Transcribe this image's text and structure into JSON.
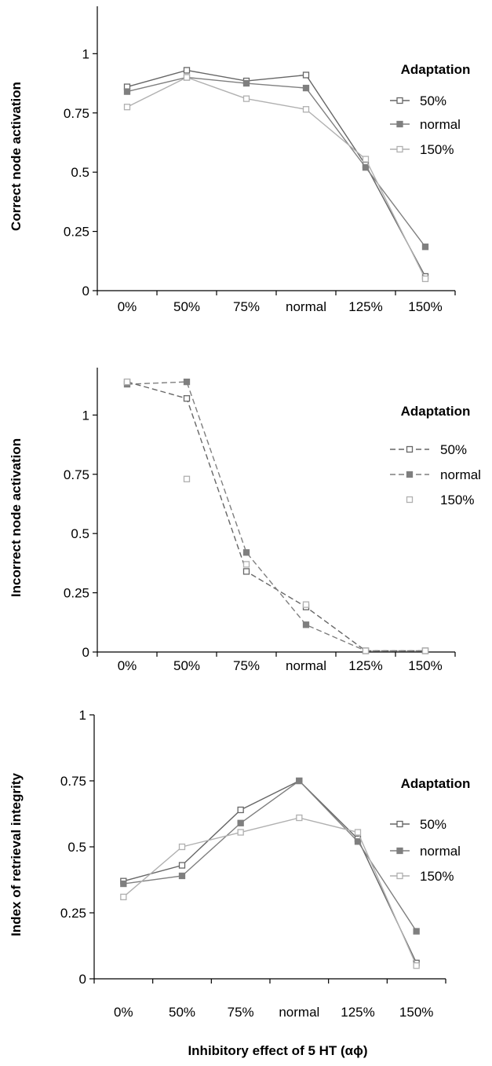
{
  "chart_data": [
    {
      "type": "line",
      "ylabel": "Correct node activation",
      "xlabel": "",
      "categories": [
        "0%",
        "50%",
        "75%",
        "normal",
        "125%",
        "150%"
      ],
      "y_ticks": [
        "0",
        "0.25",
        "0.5",
        "0.75",
        "1"
      ],
      "ylim": [
        0,
        1.2
      ],
      "legend_title": "Adaptation",
      "legend_position": "top-right",
      "series": [
        {
          "name": "50%",
          "values": [
            0.86,
            0.93,
            0.885,
            0.91,
            0.53,
            0.06
          ],
          "color": "#666666",
          "marker": "hollow-square",
          "dash": "solid"
        },
        {
          "name": "normal",
          "values": [
            0.84,
            0.9,
            0.875,
            0.855,
            0.52,
            0.185
          ],
          "color": "#7f7f7f",
          "marker": "filled-square",
          "dash": "solid"
        },
        {
          "name": "150%",
          "values": [
            0.775,
            0.9,
            0.81,
            0.765,
            0.555,
            0.05
          ],
          "color": "#b0b0b0",
          "marker": "hollow-square",
          "dash": "solid"
        }
      ]
    },
    {
      "type": "line",
      "ylabel": "Incorrect node activation",
      "xlabel": "",
      "categories": [
        "0%",
        "50%",
        "75%",
        "normal",
        "125%",
        "150%"
      ],
      "y_ticks": [
        "0",
        "0.25",
        "0.5",
        "0.75",
        "1"
      ],
      "ylim": [
        0,
        1.2
      ],
      "legend_title": "Adaptation",
      "legend_position": "top-right",
      "series": [
        {
          "name": "50%",
          "values": [
            1.14,
            1.07,
            0.34,
            0.19,
            0.005,
            0.005
          ],
          "color": "#666666",
          "marker": "hollow-square",
          "dash": "dashed"
        },
        {
          "name": "normal",
          "values": [
            1.13,
            1.14,
            0.42,
            0.115,
            0.005,
            0.005
          ],
          "color": "#7f7f7f",
          "marker": "filled-square",
          "dash": "dashed"
        },
        {
          "name": "150%",
          "values": [
            1.14,
            0.73,
            0.37,
            0.2,
            0.005,
            0.005
          ],
          "color": "#b0b0b0",
          "marker": "hollow-square",
          "dash": "none"
        }
      ]
    },
    {
      "type": "line",
      "ylabel": "Index of retrieval integrity",
      "xlabel": "Inhibitory effect of 5 HT (αϕ)",
      "categories": [
        "0%",
        "50%",
        "75%",
        "normal",
        "125%",
        "150%"
      ],
      "y_ticks": [
        "0",
        "0.25",
        "0.5",
        "0.75",
        "1"
      ],
      "ylim": [
        0,
        1
      ],
      "legend_title": "Adaptation",
      "legend_position": "top-right",
      "series": [
        {
          "name": "50%",
          "values": [
            0.37,
            0.43,
            0.64,
            0.75,
            0.53,
            0.06
          ],
          "color": "#666666",
          "marker": "hollow-square",
          "dash": "solid"
        },
        {
          "name": "normal",
          "values": [
            0.36,
            0.39,
            0.59,
            0.75,
            0.52,
            0.18
          ],
          "color": "#7f7f7f",
          "marker": "filled-square",
          "dash": "solid"
        },
        {
          "name": "150%",
          "values": [
            0.31,
            0.5,
            0.555,
            0.61,
            0.555,
            0.05
          ],
          "color": "#b0b0b0",
          "marker": "hollow-square",
          "dash": "solid"
        }
      ]
    }
  ]
}
